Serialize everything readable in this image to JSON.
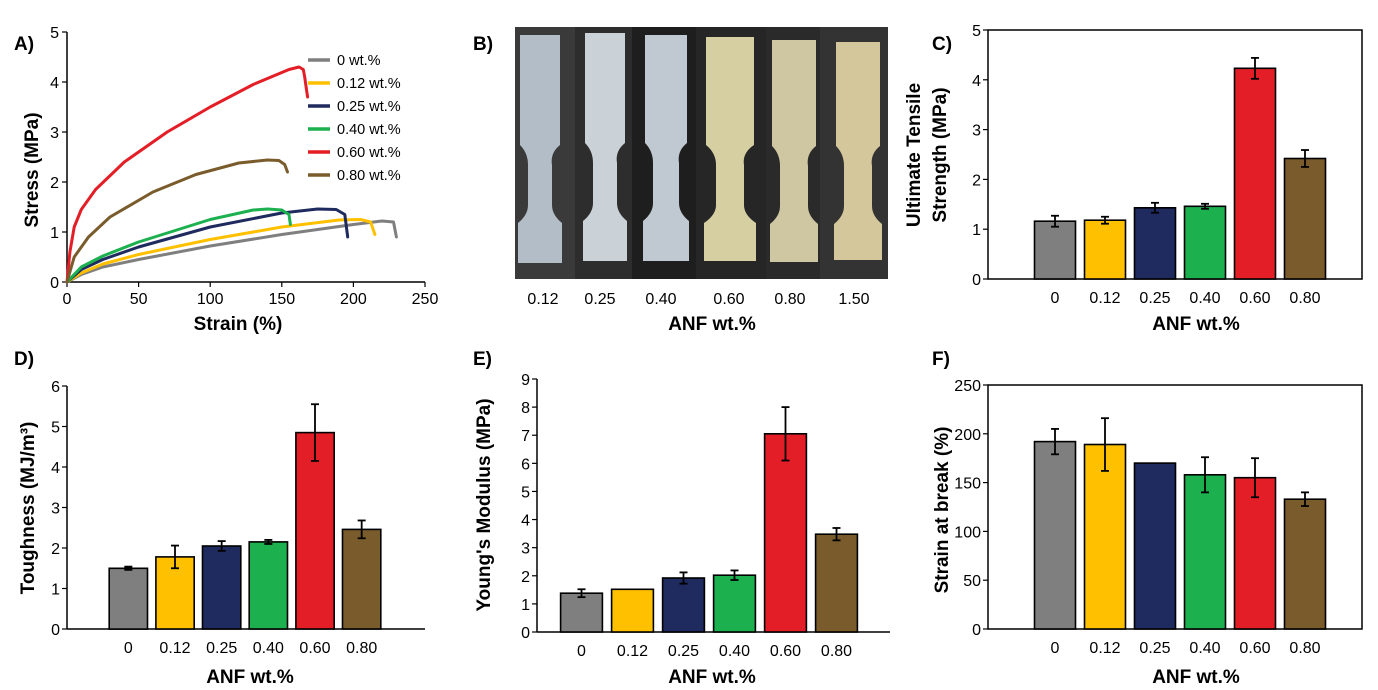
{
  "chart_data": [
    {
      "panel": "A)",
      "type": "line",
      "xlabel": "Strain (%)",
      "ylabel": "Stress (MPa)",
      "xlim": [
        0,
        250
      ],
      "ylim": [
        0,
        5
      ],
      "xticks": [
        "0",
        "50",
        "100",
        "150",
        "200",
        "250"
      ],
      "yticks": [
        "0",
        "1",
        "2",
        "3",
        "4",
        "5"
      ],
      "legend_position": "top-right",
      "series": [
        {
          "name": "0 wt.%",
          "color": "#7f7f7f",
          "x": [
            0,
            10,
            25,
            50,
            100,
            150,
            200,
            220,
            228,
            230
          ],
          "y": [
            0,
            0.15,
            0.3,
            0.45,
            0.72,
            0.95,
            1.15,
            1.22,
            1.2,
            0.9
          ]
        },
        {
          "name": "0.12 wt.%",
          "color": "#ffc000",
          "x": [
            0,
            10,
            25,
            50,
            100,
            150,
            190,
            205,
            212,
            215
          ],
          "y": [
            0,
            0.18,
            0.36,
            0.55,
            0.85,
            1.1,
            1.24,
            1.25,
            1.2,
            0.95
          ]
        },
        {
          "name": "0.25 wt.%",
          "color": "#1f2a5e",
          "x": [
            0,
            10,
            25,
            50,
            100,
            150,
            175,
            188,
            194,
            196
          ],
          "y": [
            0,
            0.25,
            0.45,
            0.7,
            1.1,
            1.38,
            1.46,
            1.45,
            1.35,
            0.9
          ]
        },
        {
          "name": "0.40 wt.%",
          "color": "#1cb04f",
          "x": [
            0,
            10,
            25,
            50,
            100,
            130,
            140,
            150,
            155,
            156
          ],
          "y": [
            0,
            0.3,
            0.52,
            0.8,
            1.25,
            1.44,
            1.46,
            1.44,
            1.35,
            1.15
          ]
        },
        {
          "name": "0.60 wt.%",
          "color": "#e41e26",
          "x": [
            0,
            2,
            5,
            10,
            20,
            40,
            70,
            100,
            130,
            155,
            162,
            165,
            166,
            167,
            168
          ],
          "y": [
            0,
            0.6,
            1.1,
            1.45,
            1.85,
            2.4,
            3.0,
            3.5,
            3.95,
            4.25,
            4.3,
            4.25,
            4.1,
            3.9,
            3.7
          ]
        },
        {
          "name": "0.80 wt.%",
          "color": "#7a5c2c",
          "x": [
            0,
            5,
            15,
            30,
            60,
            90,
            120,
            140,
            148,
            152,
            154
          ],
          "y": [
            0,
            0.5,
            0.9,
            1.3,
            1.8,
            2.15,
            2.38,
            2.44,
            2.43,
            2.35,
            2.2
          ]
        }
      ]
    },
    {
      "panel": "B)",
      "type": "image",
      "xlabel": "ANF wt.%",
      "categories": [
        "0.12",
        "0.25",
        "0.40",
        "0.60",
        "0.80",
        "1.50"
      ]
    },
    {
      "panel": "C)",
      "type": "bar",
      "xlabel": "ANF wt.%",
      "ylabel": [
        "Ultimate Tensile",
        "Strength (MPa)"
      ],
      "ylim": [
        0,
        5
      ],
      "yticks": [
        "0",
        "1",
        "2",
        "3",
        "4",
        "5"
      ],
      "categories": [
        "0",
        "0.12",
        "0.25",
        "0.40",
        "0.60",
        "0.80"
      ],
      "values": [
        1.16,
        1.18,
        1.43,
        1.46,
        4.23,
        2.42
      ],
      "errors": [
        0.11,
        0.07,
        0.1,
        0.05,
        0.21,
        0.17
      ],
      "colors": [
        "#7f7f7f",
        "#ffc000",
        "#1f2a5e",
        "#1cb04f",
        "#e41e26",
        "#7a5c2c"
      ]
    },
    {
      "panel": "D)",
      "type": "bar",
      "xlabel": "ANF wt.%",
      "ylabel": "Toughness (MJ/m³)",
      "ylim": [
        0,
        6
      ],
      "yticks": [
        "0",
        "1",
        "2",
        "3",
        "4",
        "5",
        "6"
      ],
      "categories": [
        "0",
        "0.12",
        "0.25",
        "0.40",
        "0.60",
        "0.80"
      ],
      "values": [
        1.5,
        1.78,
        2.05,
        2.15,
        4.85,
        2.46
      ],
      "errors": [
        0.04,
        0.28,
        0.12,
        0.05,
        0.7,
        0.22
      ],
      "colors": [
        "#7f7f7f",
        "#ffc000",
        "#1f2a5e",
        "#1cb04f",
        "#e41e26",
        "#7a5c2c"
      ]
    },
    {
      "panel": "E)",
      "type": "bar",
      "xlabel": "ANF wt.%",
      "ylabel": "Young's Modulus (MPa)",
      "ylim": [
        0,
        9
      ],
      "yticks": [
        "0",
        "1",
        "2",
        "3",
        "4",
        "5",
        "6",
        "7",
        "8",
        "9"
      ],
      "categories": [
        "0",
        "0.12",
        "0.25",
        "0.40",
        "0.60",
        "0.80"
      ],
      "values": [
        1.38,
        1.52,
        1.92,
        2.02,
        7.05,
        3.48
      ],
      "errors": [
        0.14,
        0.0,
        0.2,
        0.17,
        0.95,
        0.22
      ],
      "colors": [
        "#7f7f7f",
        "#ffc000",
        "#1f2a5e",
        "#1cb04f",
        "#e41e26",
        "#7a5c2c"
      ]
    },
    {
      "panel": "F)",
      "type": "bar",
      "xlabel": "ANF wt.%",
      "ylabel": "Strain at break (%)",
      "ylim": [
        0,
        250
      ],
      "yticks": [
        "0",
        "50",
        "100",
        "150",
        "200",
        "250"
      ],
      "categories": [
        "0",
        "0.12",
        "0.25",
        "0.40",
        "0.60",
        "0.80"
      ],
      "values": [
        192,
        189,
        170,
        158,
        155,
        133
      ],
      "errors": [
        13,
        27,
        0,
        18,
        20,
        7
      ],
      "colors": [
        "#7f7f7f",
        "#ffc000",
        "#1f2a5e",
        "#1cb04f",
        "#e41e26",
        "#7a5c2c"
      ]
    }
  ]
}
